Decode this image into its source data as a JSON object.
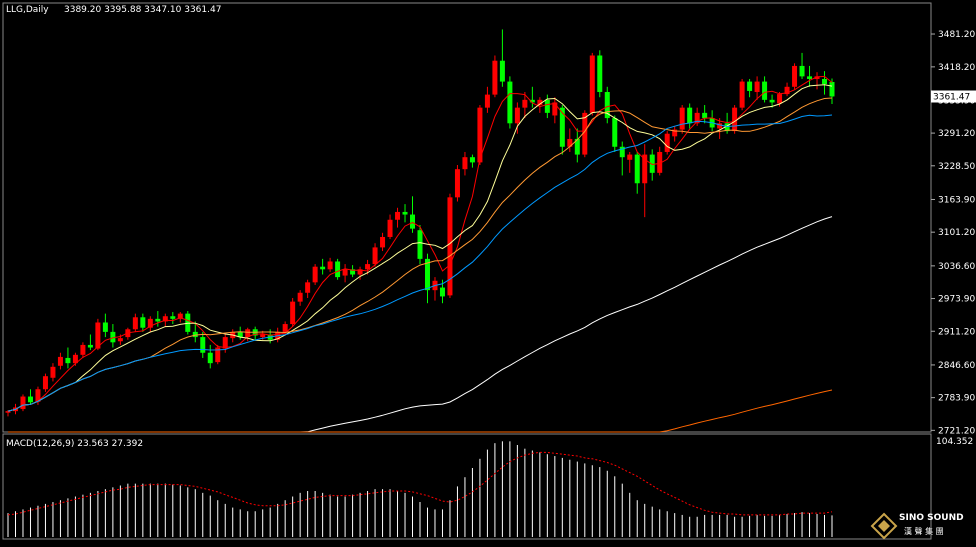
{
  "header": {
    "symbol": "LLG,Daily",
    "ohlc": "3389.20 3395.88 3347.10 3361.47"
  },
  "macd_label": "MACD(12,26,9) 23.563 27.392",
  "macd_max_label": "104.352",
  "price_label": "3361.47",
  "logo": {
    "line1": "SINO SOUND",
    "line2": "漢 聲 集 團"
  },
  "colors": {
    "background": "#000000",
    "grid": "#555555",
    "up": "#ff0000",
    "down": "#00ff00",
    "ma5": "#ff0000",
    "ma10": "#ffff99",
    "ma20": "#ff9933",
    "ma30": "#0099ff",
    "ma60": "#ffffff",
    "ma120": "#ff6600",
    "macd_hist": "#ffffff",
    "macd_signal": "#ff0000"
  },
  "chart_data": [
    {
      "type": "candlestick",
      "title": "LLG,Daily",
      "y_ticks": [
        2721.2,
        2783.9,
        2846.6,
        2911.2,
        2973.9,
        3036.6,
        3101.2,
        3163.9,
        3228.5,
        3291.2,
        3353.9,
        3418.2,
        3481.2
      ],
      "y_tick_labels": [
        "2721.20",
        "2783.90",
        "2846.60",
        "2911.20",
        "2973.90",
        "3036.60",
        "3101.20",
        "3163.90",
        "3228.50",
        "3291.20",
        "3353.90",
        "3418.20",
        "3481.20"
      ],
      "ylim": [
        2718,
        3510
      ],
      "candles": [
        [
          2755,
          2760,
          2748,
          2758
        ],
        [
          2758,
          2772,
          2752,
          2765
        ],
        [
          2762,
          2790,
          2758,
          2786
        ],
        [
          2786,
          2800,
          2770,
          2775
        ],
        [
          2776,
          2805,
          2770,
          2800
        ],
        [
          2800,
          2830,
          2795,
          2825
        ],
        [
          2822,
          2850,
          2815,
          2843
        ],
        [
          2845,
          2870,
          2838,
          2862
        ],
        [
          2860,
          2880,
          2840,
          2850
        ],
        [
          2850,
          2870,
          2845,
          2866
        ],
        [
          2866,
          2890,
          2860,
          2885
        ],
        [
          2885,
          2905,
          2875,
          2880
        ],
        [
          2878,
          2935,
          2875,
          2928
        ],
        [
          2928,
          2945,
          2900,
          2910
        ],
        [
          2910,
          2925,
          2880,
          2890
        ],
        [
          2892,
          2905,
          2885,
          2898
        ],
        [
          2900,
          2918,
          2895,
          2915
        ],
        [
          2915,
          2945,
          2910,
          2938
        ],
        [
          2938,
          2945,
          2910,
          2918
        ],
        [
          2918,
          2940,
          2910,
          2935
        ],
        [
          2935,
          2950,
          2920,
          2930
        ],
        [
          2930,
          2945,
          2920,
          2940
        ],
        [
          2940,
          2948,
          2925,
          2935
        ],
        [
          2935,
          2948,
          2928,
          2945
        ],
        [
          2945,
          2950,
          2905,
          2910
        ],
        [
          2910,
          2930,
          2890,
          2900
        ],
        [
          2900,
          2910,
          2860,
          2870
        ],
        [
          2870,
          2885,
          2840,
          2850
        ],
        [
          2852,
          2885,
          2848,
          2880
        ],
        [
          2878,
          2905,
          2870,
          2900
        ],
        [
          2898,
          2915,
          2890,
          2910
        ],
        [
          2910,
          2920,
          2895,
          2900
        ],
        [
          2900,
          2918,
          2892,
          2915
        ],
        [
          2915,
          2920,
          2895,
          2903
        ],
        [
          2900,
          2912,
          2895,
          2905
        ],
        [
          2905,
          2915,
          2888,
          2895
        ],
        [
          2895,
          2918,
          2890,
          2910
        ],
        [
          2910,
          2930,
          2905,
          2925
        ],
        [
          2925,
          2975,
          2920,
          2968
        ],
        [
          2968,
          2990,
          2960,
          2985
        ],
        [
          2985,
          3010,
          2975,
          3005
        ],
        [
          3005,
          3040,
          3000,
          3035
        ],
        [
          3035,
          3050,
          3020,
          3030
        ],
        [
          3030,
          3052,
          3025,
          3045
        ],
        [
          3045,
          3050,
          3010,
          3015
        ],
        [
          3018,
          3040,
          3005,
          3030
        ],
        [
          3030,
          3038,
          3015,
          3020
        ],
        [
          3020,
          3035,
          3010,
          3030
        ],
        [
          3030,
          3048,
          3020,
          3040
        ],
        [
          3040,
          3080,
          3035,
          3072
        ],
        [
          3072,
          3100,
          3065,
          3092
        ],
        [
          3092,
          3135,
          3088,
          3125
        ],
        [
          3125,
          3148,
          3110,
          3140
        ],
        [
          3140,
          3155,
          3120,
          3135
        ],
        [
          3135,
          3170,
          3100,
          3108
        ],
        [
          3105,
          3115,
          3040,
          3050
        ],
        [
          3050,
          3060,
          2965,
          2990
        ],
        [
          2990,
          3015,
          2970,
          3008
        ],
        [
          2995,
          3010,
          2965,
          2978
        ],
        [
          2980,
          3175,
          2975,
          3168
        ],
        [
          3168,
          3230,
          3160,
          3222
        ],
        [
          3222,
          3255,
          3210,
          3245
        ],
        [
          3245,
          3250,
          3225,
          3235
        ],
        [
          3235,
          3345,
          3230,
          3340
        ],
        [
          3340,
          3380,
          3330,
          3365
        ],
        [
          3365,
          3440,
          3360,
          3430
        ],
        [
          3430,
          3490,
          3380,
          3390
        ],
        [
          3390,
          3400,
          3300,
          3310
        ],
        [
          3310,
          3350,
          3290,
          3340
        ],
        [
          3340,
          3370,
          3320,
          3355
        ],
        [
          3355,
          3380,
          3340,
          3350
        ],
        [
          3345,
          3360,
          3330,
          3355
        ],
        [
          3355,
          3365,
          3320,
          3330
        ],
        [
          3325,
          3360,
          3310,
          3350
        ],
        [
          3340,
          3345,
          3250,
          3265
        ],
        [
          3265,
          3300,
          3255,
          3280
        ],
        [
          3280,
          3300,
          3235,
          3250
        ],
        [
          3250,
          3335,
          3245,
          3330
        ],
        [
          3330,
          3445,
          3325,
          3440
        ],
        [
          3440,
          3450,
          3360,
          3370
        ],
        [
          3370,
          3380,
          3310,
          3320
        ],
        [
          3320,
          3325,
          3255,
          3265
        ],
        [
          3265,
          3275,
          3210,
          3245
        ],
        [
          3240,
          3255,
          3215,
          3250
        ],
        [
          3250,
          3255,
          3175,
          3195
        ],
        [
          3195,
          3270,
          3130,
          3250
        ],
        [
          3250,
          3260,
          3200,
          3215
        ],
        [
          3215,
          3265,
          3210,
          3255
        ],
        [
          3255,
          3295,
          3250,
          3290
        ],
        [
          3285,
          3305,
          3275,
          3298
        ],
        [
          3298,
          3345,
          3290,
          3340
        ],
        [
          3340,
          3348,
          3300,
          3310
        ],
        [
          3310,
          3340,
          3305,
          3330
        ],
        [
          3330,
          3345,
          3310,
          3320
        ],
        [
          3320,
          3335,
          3295,
          3302
        ],
        [
          3300,
          3320,
          3280,
          3310
        ],
        [
          3310,
          3330,
          3290,
          3295
        ],
        [
          3295,
          3345,
          3290,
          3340
        ],
        [
          3340,
          3395,
          3335,
          3390
        ],
        [
          3390,
          3395,
          3360,
          3372
        ],
        [
          3370,
          3400,
          3355,
          3390
        ],
        [
          3390,
          3400,
          3350,
          3355
        ],
        [
          3355,
          3365,
          3340,
          3350
        ],
        [
          3348,
          3370,
          3342,
          3366
        ],
        [
          3366,
          3388,
          3362,
          3380
        ],
        [
          3380,
          3425,
          3375,
          3420
        ],
        [
          3420,
          3445,
          3395,
          3400
        ],
        [
          3400,
          3420,
          3380,
          3395
        ],
        [
          3395,
          3408,
          3375,
          3400
        ],
        [
          3395,
          3410,
          3365,
          3385
        ],
        [
          3389.2,
          3395.88,
          3347.1,
          3361.47
        ]
      ],
      "last_price": 3361.47
    },
    {
      "type": "bar",
      "title": "MACD(12,26,9) 23.563 27.392",
      "ylim": [
        0,
        104.352
      ],
      "histogram": [
        26,
        28,
        30,
        32,
        34,
        36,
        38,
        40,
        42,
        44,
        46,
        48,
        50,
        52,
        54,
        56,
        58,
        58,
        58,
        58,
        58,
        58,
        57,
        56,
        54,
        52,
        48,
        45,
        40,
        36,
        32,
        30,
        28,
        28,
        30,
        32,
        36,
        40,
        44,
        48,
        50,
        50,
        48,
        46,
        44,
        44,
        46,
        48,
        50,
        52,
        52,
        52,
        50,
        48,
        44,
        38,
        32,
        30,
        30,
        40,
        55,
        65,
        75,
        85,
        95,
        102,
        104,
        104,
        100,
        96,
        94,
        92,
        90,
        88,
        86,
        84,
        82,
        80,
        78,
        76,
        72,
        66,
        58,
        48,
        40,
        36,
        33,
        30,
        28,
        26,
        24,
        22,
        22,
        24,
        24,
        24,
        24,
        22,
        22,
        23,
        24,
        23,
        23,
        24,
        25,
        26,
        27,
        26,
        25,
        24,
        23.563
      ],
      "signal": [
        24,
        25,
        27,
        29,
        31,
        33,
        35,
        37,
        39,
        41,
        43,
        45,
        47,
        49,
        51,
        52,
        54,
        55,
        56,
        57,
        57,
        57,
        57,
        57,
        56,
        55,
        53,
        51,
        49,
        46,
        43,
        40,
        37,
        35,
        34,
        34,
        34,
        35,
        37,
        39,
        41,
        43,
        44,
        45,
        45,
        45,
        45,
        46,
        47,
        48,
        49,
        50,
        50,
        50,
        49,
        47,
        45,
        42,
        39,
        38,
        40,
        44,
        49,
        55,
        62,
        69,
        76,
        82,
        86,
        89,
        91,
        92,
        92,
        91,
        90,
        89,
        88,
        86,
        85,
        83,
        81,
        78,
        74,
        70,
        66,
        61,
        56,
        51,
        47,
        43,
        39,
        35,
        32,
        29,
        27,
        26,
        25,
        25,
        24,
        24,
        24,
        24,
        24,
        24,
        25,
        25,
        26,
        26,
        26,
        26,
        27.392
      ]
    }
  ]
}
